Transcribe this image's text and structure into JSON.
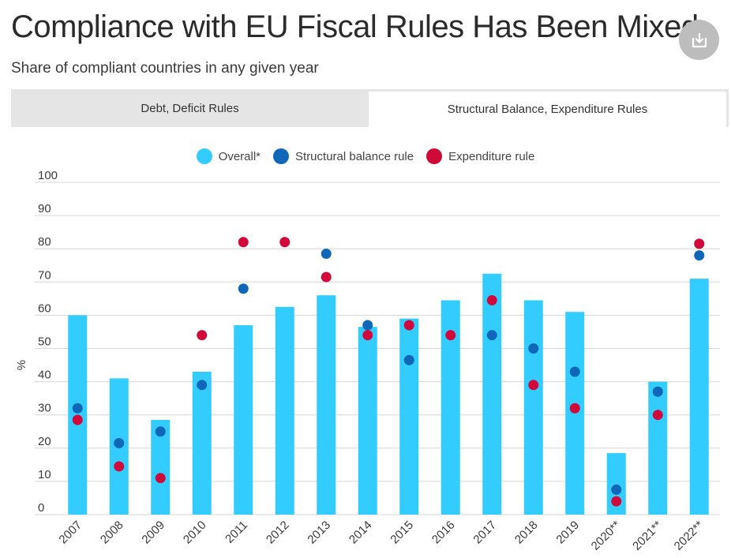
{
  "page": {
    "title": "Compliance with EU Fiscal Rules Has Been Mixed",
    "subtitle": "Share of compliant countries in any given year"
  },
  "download_button": {
    "icon": "download-icon"
  },
  "tabs": [
    {
      "label": "Debt, Deficit Rules",
      "active": false
    },
    {
      "label": "Structural Balance, Expenditure Rules",
      "active": true
    }
  ],
  "colors": {
    "overall": "#33ccff",
    "structural": "#0f67b8",
    "expenditure": "#d0093a",
    "grid": "#d6d6d6"
  },
  "chart_data": {
    "type": "bar",
    "ylabel": "%",
    "ylim": [
      0,
      100
    ],
    "yticks": [
      0,
      10,
      20,
      30,
      40,
      50,
      60,
      70,
      80,
      90,
      100
    ],
    "grid": true,
    "legend_position": "top-center",
    "categories": [
      "2007",
      "2008",
      "2009",
      "2010",
      "2011",
      "2012",
      "2013",
      "2014",
      "2015",
      "2016",
      "2017",
      "2018",
      "2019",
      "2020**",
      "2021**",
      "2022**"
    ],
    "series": [
      {
        "name": "Overall*",
        "kind": "bar",
        "color": "#33ccff",
        "values": [
          60,
          41,
          28.5,
          43,
          57,
          62.5,
          66,
          56.5,
          59,
          64.5,
          72.5,
          64.5,
          61,
          18.5,
          40,
          71
        ]
      },
      {
        "name": "Structural balance rule",
        "kind": "dot",
        "color": "#0f67b8",
        "values": [
          32,
          21.5,
          25,
          39,
          68,
          null,
          78.5,
          57,
          46.5,
          null,
          54,
          50,
          43,
          7.5,
          37,
          78
        ]
      },
      {
        "name": "Expenditure rule",
        "kind": "dot",
        "color": "#d0093a",
        "values": [
          28.5,
          14.5,
          11,
          54,
          82,
          82,
          71.5,
          54,
          57,
          54,
          64.5,
          39,
          32,
          4,
          30,
          81.5
        ]
      }
    ]
  }
}
